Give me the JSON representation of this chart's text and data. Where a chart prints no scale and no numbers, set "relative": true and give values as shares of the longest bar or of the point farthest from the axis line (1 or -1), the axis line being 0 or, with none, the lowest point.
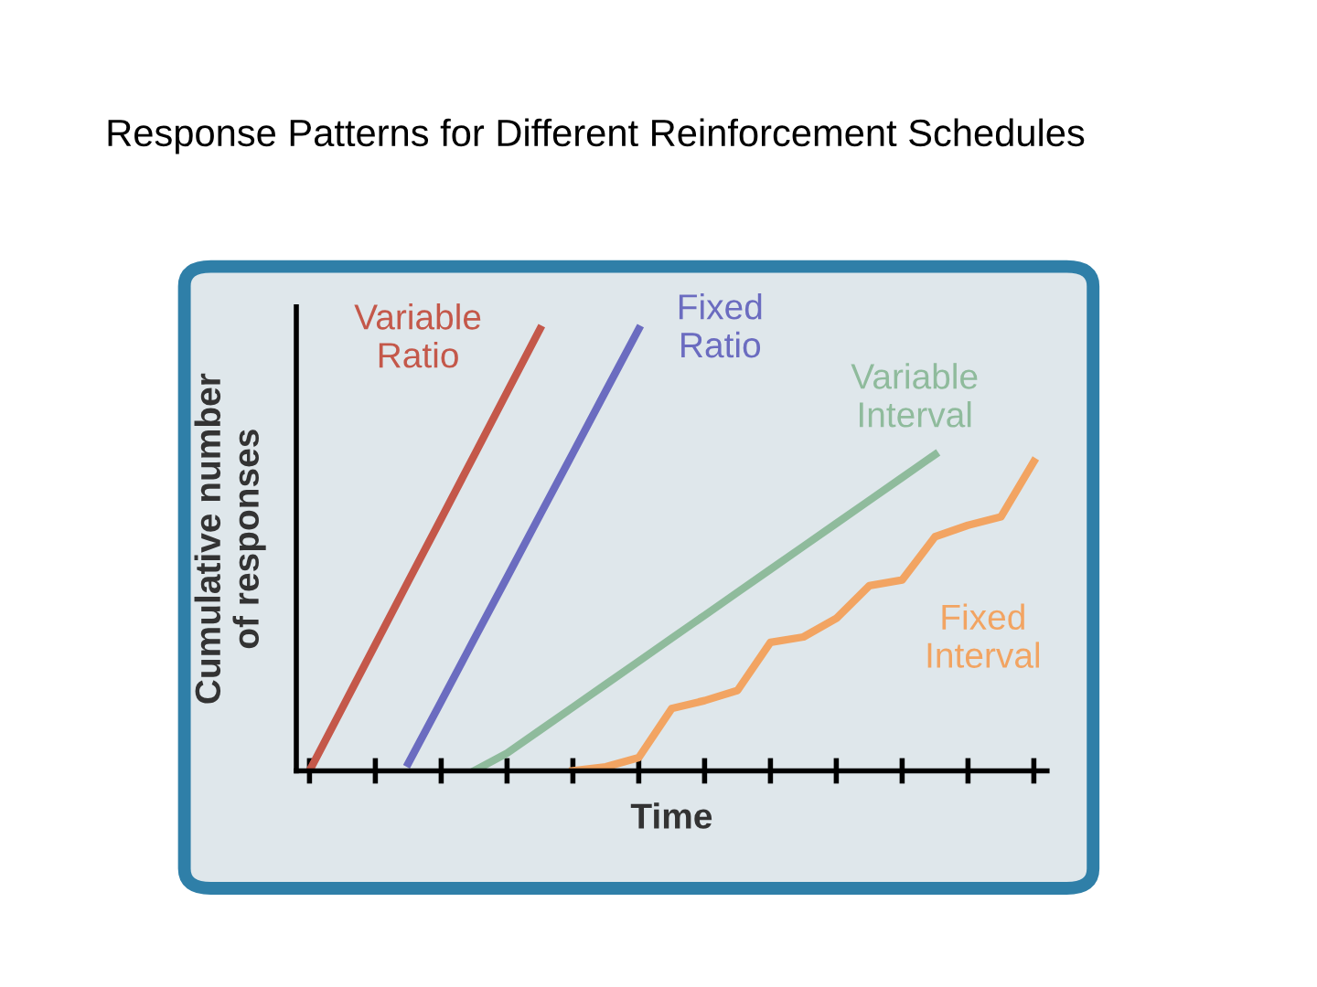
{
  "chart_data": {
    "type": "line",
    "title": "Response Patterns for Different Reinforcement Schedules",
    "xlabel": "Time",
    "ylabel": "Cumulative number\nof responses",
    "relative": true,
    "categories": [
      null,
      null,
      null,
      null,
      null,
      null,
      null,
      null,
      null,
      null,
      null,
      null,
      null,
      null,
      null,
      null,
      null,
      null,
      null,
      null,
      null,
      null,
      null
    ],
    "grid": false,
    "legend": false,
    "marker": "none",
    "line_style": "solid",
    "series": [
      {
        "name": "Variable\nRatio",
        "color": "#c4584a",
        "values": [
          0,
          0.143,
          0.286,
          0.429,
          0.571,
          0.714,
          0.857,
          1.0,
          null,
          null,
          null,
          null,
          null,
          null,
          null,
          null,
          null,
          null,
          null,
          null,
          null,
          null,
          null
        ]
      },
      {
        "name": "Fixed\nRatio",
        "color": "#6b6cc0",
        "values": [
          null,
          null,
          null,
          0.017,
          0.157,
          0.298,
          0.438,
          0.579,
          0.719,
          0.86,
          1.0,
          null,
          null,
          null,
          null,
          null,
          null,
          null,
          null,
          null,
          null,
          null,
          null
        ]
      },
      {
        "name": "Variable\nInterval",
        "color": "#8fbb9c",
        "values": [
          null,
          null,
          null,
          null,
          null,
          0,
          0.04,
          0.092,
          0.144,
          0.196,
          0.248,
          0.3,
          0.352,
          0.404,
          0.456,
          0.508,
          0.56,
          0.612,
          0.664,
          0.716,
          null,
          null,
          null
        ]
      },
      {
        "name": "Fixed\nInterval",
        "color": "#f2a462",
        "values": [
          null,
          null,
          null,
          null,
          null,
          null,
          null,
          null,
          0,
          0.009,
          0.03,
          0.141,
          0.159,
          0.182,
          0.291,
          0.303,
          0.345,
          0.419,
          0.432,
          0.53,
          0.556,
          0.575,
          0.7
        ]
      }
    ]
  }
}
